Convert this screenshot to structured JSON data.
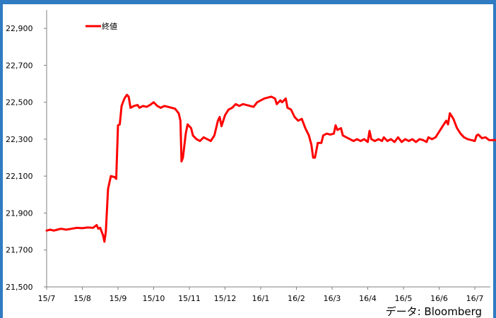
{
  "chart_data": {
    "type": "line",
    "title": "",
    "xlabel": "",
    "ylabel": "",
    "ylim": [
      21500,
      23000
    ],
    "y_ticks": [
      "21,500",
      "21,700",
      "21,900",
      "22,100",
      "22,300",
      "22,500",
      "22,700",
      "22,900"
    ],
    "y_tick_values": [
      21500,
      21700,
      21900,
      22100,
      22300,
      22500,
      22700,
      22900
    ],
    "x_ticks": [
      "15/7",
      "15/8",
      "15/9",
      "15/10",
      "15/11",
      "15/12",
      "16/1",
      "16/2",
      "16/3",
      "16/4",
      "16/5",
      "16/6",
      "16/7"
    ],
    "x_range": [
      0,
      12.9
    ],
    "grid": false,
    "legend_position": "top-left",
    "series": [
      {
        "name": "終値",
        "color": "#ff0000",
        "points": [
          [
            0.0,
            21805
          ],
          [
            0.1,
            21810
          ],
          [
            0.2,
            21805
          ],
          [
            0.3,
            21810
          ],
          [
            0.4,
            21815
          ],
          [
            0.55,
            21810
          ],
          [
            0.7,
            21815
          ],
          [
            0.85,
            21820
          ],
          [
            1.0,
            21818
          ],
          [
            1.15,
            21822
          ],
          [
            1.3,
            21820
          ],
          [
            1.4,
            21835
          ],
          [
            1.45,
            21815
          ],
          [
            1.5,
            21820
          ],
          [
            1.58,
            21780
          ],
          [
            1.62,
            21745
          ],
          [
            1.66,
            21800
          ],
          [
            1.72,
            22030
          ],
          [
            1.8,
            22100
          ],
          [
            1.9,
            22095
          ],
          [
            1.95,
            22085
          ],
          [
            2.0,
            22375
          ],
          [
            2.05,
            22380
          ],
          [
            2.1,
            22480
          ],
          [
            2.18,
            22520
          ],
          [
            2.25,
            22540
          ],
          [
            2.3,
            22530
          ],
          [
            2.35,
            22470
          ],
          [
            2.45,
            22480
          ],
          [
            2.55,
            22485
          ],
          [
            2.6,
            22470
          ],
          [
            2.7,
            22480
          ],
          [
            2.8,
            22475
          ],
          [
            2.9,
            22485
          ],
          [
            3.0,
            22500
          ],
          [
            3.1,
            22480
          ],
          [
            3.2,
            22470
          ],
          [
            3.3,
            22480
          ],
          [
            3.4,
            22475
          ],
          [
            3.5,
            22470
          ],
          [
            3.6,
            22465
          ],
          [
            3.7,
            22440
          ],
          [
            3.75,
            22400
          ],
          [
            3.78,
            22180
          ],
          [
            3.82,
            22200
          ],
          [
            3.9,
            22330
          ],
          [
            3.95,
            22380
          ],
          [
            4.05,
            22360
          ],
          [
            4.1,
            22320
          ],
          [
            4.2,
            22300
          ],
          [
            4.3,
            22290
          ],
          [
            4.4,
            22310
          ],
          [
            4.5,
            22300
          ],
          [
            4.6,
            22290
          ],
          [
            4.7,
            22320
          ],
          [
            4.75,
            22360
          ],
          [
            4.8,
            22400
          ],
          [
            4.85,
            22420
          ],
          [
            4.9,
            22370
          ],
          [
            5.0,
            22430
          ],
          [
            5.1,
            22460
          ],
          [
            5.2,
            22470
          ],
          [
            5.3,
            22490
          ],
          [
            5.4,
            22480
          ],
          [
            5.5,
            22490
          ],
          [
            5.6,
            22485
          ],
          [
            5.7,
            22480
          ],
          [
            5.8,
            22475
          ],
          [
            5.9,
            22500
          ],
          [
            6.0,
            22510
          ],
          [
            6.1,
            22520
          ],
          [
            6.2,
            22525
          ],
          [
            6.3,
            22530
          ],
          [
            6.4,
            22520
          ],
          [
            6.45,
            22490
          ],
          [
            6.55,
            22510
          ],
          [
            6.6,
            22500
          ],
          [
            6.7,
            22520
          ],
          [
            6.75,
            22470
          ],
          [
            6.85,
            22460
          ],
          [
            6.95,
            22420
          ],
          [
            7.05,
            22400
          ],
          [
            7.15,
            22410
          ],
          [
            7.25,
            22360
          ],
          [
            7.35,
            22320
          ],
          [
            7.42,
            22270
          ],
          [
            7.47,
            22200
          ],
          [
            7.52,
            22200
          ],
          [
            7.6,
            22280
          ],
          [
            7.7,
            22280
          ],
          [
            7.75,
            22320
          ],
          [
            7.85,
            22330
          ],
          [
            7.95,
            22325
          ],
          [
            8.05,
            22330
          ],
          [
            8.1,
            22375
          ],
          [
            8.15,
            22350
          ],
          [
            8.25,
            22360
          ],
          [
            8.3,
            22320
          ],
          [
            8.4,
            22310
          ],
          [
            8.5,
            22300
          ],
          [
            8.6,
            22290
          ],
          [
            8.7,
            22300
          ],
          [
            8.8,
            22290
          ],
          [
            8.9,
            22300
          ],
          [
            9.0,
            22285
          ],
          [
            9.05,
            22345
          ],
          [
            9.1,
            22300
          ],
          [
            9.2,
            22290
          ],
          [
            9.3,
            22300
          ],
          [
            9.4,
            22290
          ],
          [
            9.45,
            22310
          ],
          [
            9.55,
            22290
          ],
          [
            9.65,
            22300
          ],
          [
            9.75,
            22285
          ],
          [
            9.85,
            22310
          ],
          [
            9.95,
            22285
          ],
          [
            10.05,
            22300
          ],
          [
            10.15,
            22290
          ],
          [
            10.25,
            22300
          ],
          [
            10.35,
            22285
          ],
          [
            10.45,
            22300
          ],
          [
            10.55,
            22295
          ],
          [
            10.65,
            22285
          ],
          [
            10.7,
            22310
          ],
          [
            10.8,
            22300
          ],
          [
            10.9,
            22310
          ],
          [
            11.0,
            22340
          ],
          [
            11.1,
            22370
          ],
          [
            11.2,
            22400
          ],
          [
            11.25,
            22380
          ],
          [
            11.3,
            22440
          ],
          [
            11.4,
            22410
          ],
          [
            11.5,
            22360
          ],
          [
            11.6,
            22330
          ],
          [
            11.7,
            22310
          ],
          [
            11.8,
            22300
          ],
          [
            11.9,
            22295
          ],
          [
            12.0,
            22290
          ],
          [
            12.05,
            22320
          ],
          [
            12.1,
            22325
          ],
          [
            12.2,
            22305
          ],
          [
            12.3,
            22310
          ],
          [
            12.4,
            22295
          ],
          [
            12.5,
            22295
          ],
          [
            12.6,
            22295
          ],
          [
            12.7,
            22295
          ],
          [
            12.8,
            22300
          ],
          [
            12.85,
            22305
          ],
          [
            12.9,
            22290
          ]
        ]
      }
    ],
    "source_label": "データ: Bloomberg"
  }
}
